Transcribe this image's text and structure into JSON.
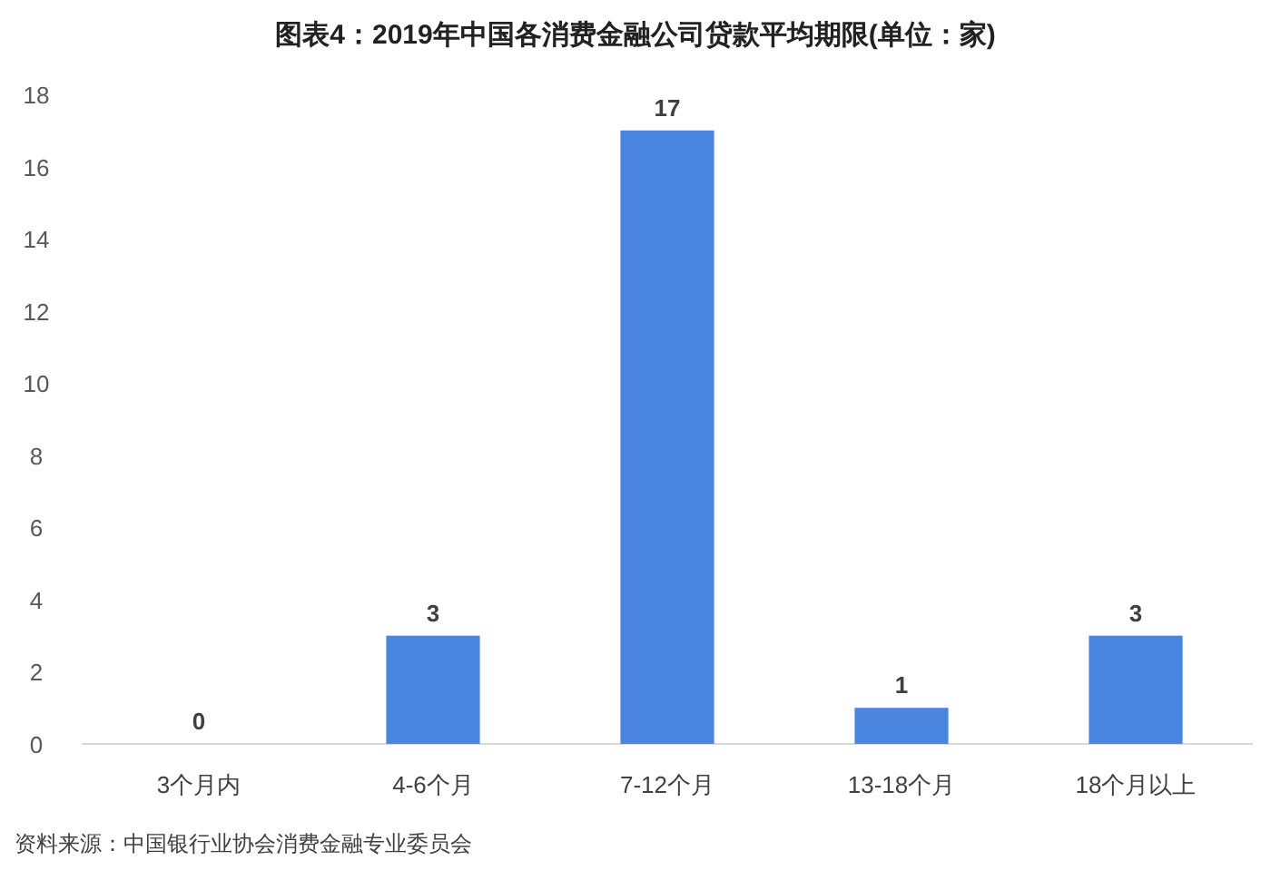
{
  "chart_data": {
    "type": "bar",
    "title": "图表4：2019年中国各消费金融公司贷款平均期限(单位：家)",
    "categories": [
      "3个月内",
      "4-6个月",
      "7-12个月",
      "13-18个月",
      "18个月以上"
    ],
    "values": [
      0,
      3,
      17,
      1,
      3
    ],
    "color": "#4a86e0",
    "ylim": [
      0,
      18
    ],
    "yticks": [
      0,
      2,
      4,
      6,
      8,
      10,
      12,
      14,
      16,
      18
    ],
    "grid": false,
    "data_labels": true,
    "annotations": [
      "资料来源：中国银行业协会消费金融专业委员会"
    ]
  }
}
